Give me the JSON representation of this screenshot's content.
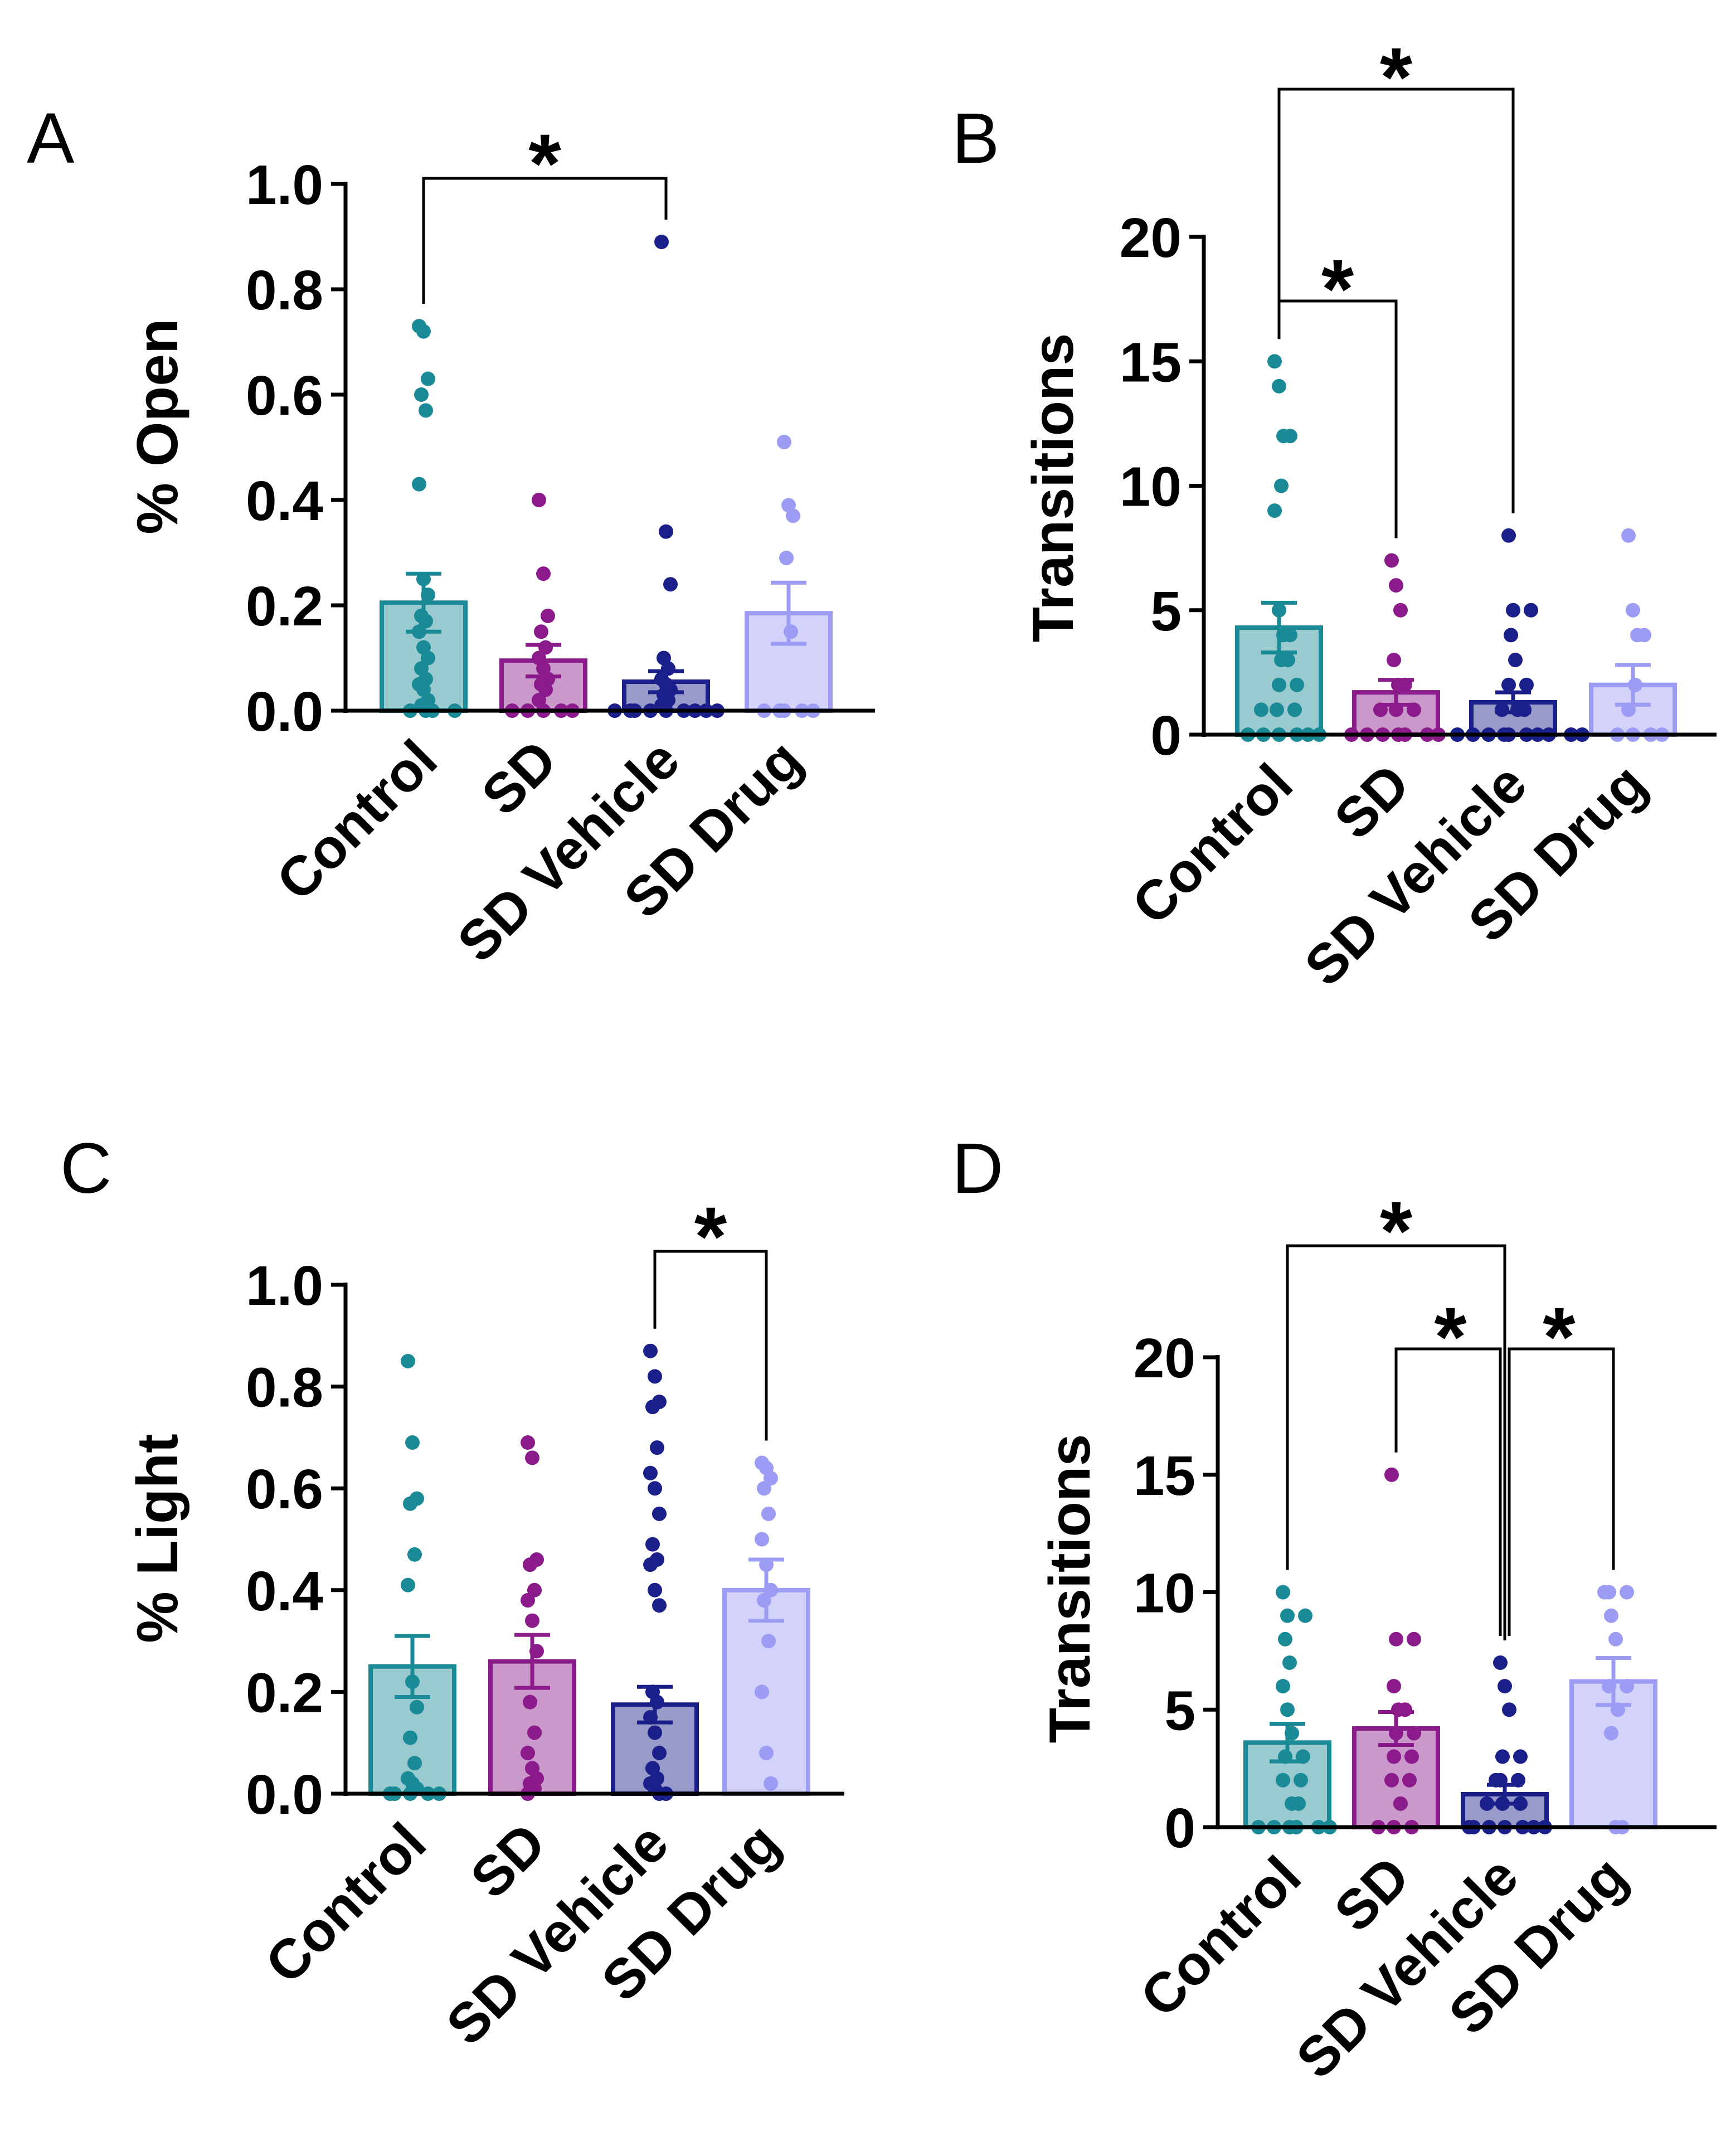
{
  "colors": {
    "control": "#1a8a97",
    "sd": "#8b1a8b",
    "sd_vehicle": "#1b1f8a",
    "sd_drug": "#9c9cf5"
  },
  "chart_data": [
    {
      "panel": "A",
      "type": "bar",
      "ylabel": "% Open",
      "ylim": [
        0,
        1.0
      ],
      "yticks": [
        "0.0",
        "0.2",
        "0.4",
        "0.6",
        "0.8",
        "1.0"
      ],
      "categories": [
        "Control",
        "SD",
        "SD Vehicle",
        "SD Drug"
      ],
      "values": [
        0.205,
        0.095,
        0.055,
        0.185
      ],
      "sem": [
        0.055,
        0.03,
        0.02,
        0.058
      ],
      "points": [
        [
          0.73,
          0.72,
          0.63,
          0.6,
          0.57,
          0.43,
          0.25,
          0.22,
          0.18,
          0.17,
          0.15,
          0.12,
          0.1,
          0.08,
          0.06,
          0.05,
          0.04,
          0.02,
          0.01,
          0.0,
          0.0,
          0.0,
          0.0
        ],
        [
          0.4,
          0.26,
          0.18,
          0.15,
          0.12,
          0.1,
          0.08,
          0.06,
          0.05,
          0.04,
          0.02,
          0.0,
          0.0,
          0.0,
          0.0,
          0.0
        ],
        [
          0.89,
          0.34,
          0.24,
          0.1,
          0.08,
          0.06,
          0.05,
          0.04,
          0.03,
          0.02,
          0.01,
          0.0,
          0.0,
          0.0,
          0.0,
          0.0,
          0.0,
          0.0,
          0.0,
          0.0
        ],
        [
          0.51,
          0.39,
          0.37,
          0.29,
          0.15,
          0.0,
          0.0,
          0.0,
          0.0,
          0.0
        ]
      ],
      "significance": [
        {
          "from": 0,
          "to": 2,
          "label": "*"
        }
      ]
    },
    {
      "panel": "B",
      "type": "bar",
      "ylabel": "Transitions",
      "ylim": [
        0,
        20
      ],
      "yticks": [
        "0",
        "5",
        "10",
        "15",
        "20"
      ],
      "categories": [
        "Control",
        "SD",
        "SD Vehicle",
        "SD Drug"
      ],
      "values": [
        4.3,
        1.7,
        1.3,
        2.0
      ],
      "sem": [
        1.0,
        0.5,
        0.4,
        0.8
      ],
      "points": [
        [
          15,
          14,
          12,
          12,
          10,
          9,
          5,
          4,
          4,
          3,
          3,
          2,
          2,
          1,
          1,
          1,
          0,
          0,
          0,
          0,
          0,
          0
        ],
        [
          7,
          6,
          5,
          3,
          2,
          2,
          1,
          1,
          1,
          0,
          0,
          0,
          0,
          0,
          0,
          0
        ],
        [
          8,
          5,
          5,
          4,
          3,
          2,
          2,
          1,
          1,
          1,
          0,
          0,
          0,
          0,
          0,
          0,
          0,
          0,
          0,
          0
        ],
        [
          8,
          5,
          4,
          4,
          2,
          1,
          0,
          0,
          0,
          0
        ]
      ],
      "significance": [
        {
          "from": 0,
          "to": 1,
          "label": "*"
        },
        {
          "from": 0,
          "to": 2,
          "label": "*"
        }
      ]
    },
    {
      "panel": "C",
      "type": "bar",
      "ylabel": "% Light",
      "ylim": [
        0,
        1.0
      ],
      "yticks": [
        "0.0",
        "0.2",
        "0.4",
        "0.6",
        "0.8",
        "1.0"
      ],
      "categories": [
        "Control",
        "SD",
        "SD Vehicle",
        "SD Drug"
      ],
      "values": [
        0.25,
        0.26,
        0.175,
        0.4
      ],
      "sem": [
        0.06,
        0.052,
        0.035,
        0.06
      ],
      "points": [
        [
          0.85,
          0.69,
          0.58,
          0.57,
          0.47,
          0.41,
          0.22,
          0.17,
          0.11,
          0.06,
          0.03,
          0.02,
          0.01,
          0.0,
          0.0,
          0.0,
          0.0,
          0.0
        ],
        [
          0.69,
          0.66,
          0.46,
          0.45,
          0.4,
          0.38,
          0.34,
          0.28,
          0.18,
          0.12,
          0.08,
          0.05,
          0.03,
          0.02,
          0.01,
          0.0
        ],
        [
          0.87,
          0.82,
          0.77,
          0.76,
          0.68,
          0.63,
          0.6,
          0.55,
          0.49,
          0.46,
          0.45,
          0.4,
          0.37,
          0.2,
          0.18,
          0.15,
          0.12,
          0.08,
          0.05,
          0.03,
          0.02,
          0.01,
          0.0,
          0.0
        ],
        [
          0.65,
          0.64,
          0.62,
          0.6,
          0.55,
          0.5,
          0.45,
          0.4,
          0.38,
          0.3,
          0.2,
          0.08,
          0.02
        ]
      ],
      "significance": [
        {
          "from": 2,
          "to": 3,
          "label": "*"
        }
      ]
    },
    {
      "panel": "D",
      "type": "bar",
      "ylabel": "Transitions",
      "ylim": [
        0,
        20
      ],
      "yticks": [
        "0",
        "5",
        "10",
        "15",
        "20"
      ],
      "categories": [
        "Control",
        "SD",
        "SD Vehicle",
        "SD Drug"
      ],
      "values": [
        3.6,
        4.2,
        1.4,
        6.2
      ],
      "sem": [
        0.8,
        0.7,
        0.4,
        1.0
      ],
      "points": [
        [
          10,
          9,
          9,
          8,
          7,
          6,
          5,
          4,
          3,
          3,
          2,
          2,
          1,
          1,
          0,
          0,
          0,
          0,
          0,
          0
        ],
        [
          15,
          8,
          8,
          6,
          5,
          5,
          4,
          4,
          3,
          3,
          2,
          2,
          1,
          0,
          0,
          0
        ],
        [
          7,
          6,
          5,
          3,
          3,
          2,
          2,
          2,
          1,
          1,
          1,
          0,
          0,
          0,
          0,
          0,
          0,
          0
        ],
        [
          10,
          10,
          10,
          9,
          8,
          6,
          6,
          5,
          4,
          0,
          0
        ]
      ],
      "significance": [
        {
          "from": 0,
          "to": 2,
          "label": "*"
        },
        {
          "from": 1,
          "to": 2,
          "label": "*"
        },
        {
          "from": 2,
          "to": 3,
          "label": "*"
        }
      ]
    }
  ]
}
